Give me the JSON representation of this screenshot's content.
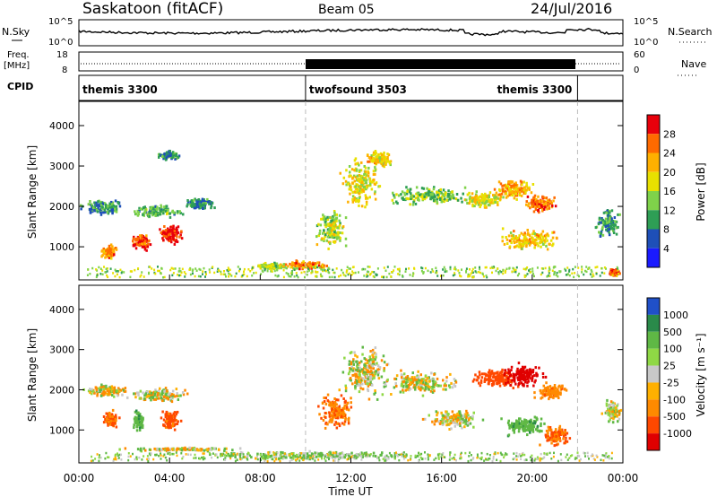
{
  "header": {
    "site": "Saskatoon (fitACF)",
    "beam": "Beam 05",
    "date": "24/Jul/2016"
  },
  "noise_panel": {
    "left_label": "N.Sky",
    "left_ticks": [
      "10^5",
      "10^0"
    ],
    "right_ticks": [
      "10^5",
      "10^0"
    ],
    "right_label": "N.Search"
  },
  "freq_panel": {
    "left_label_1": "Freq.",
    "left_label_2": "[MHz]",
    "left_ticks": [
      "18",
      "8"
    ],
    "right_ticks": [
      "60",
      "0"
    ],
    "right_label": "Nave"
  },
  "cpid_panel": {
    "label": "CPID",
    "segments": [
      {
        "name": "themis 3300",
        "start_h": 0,
        "end_h": 10
      },
      {
        "name": "twofsound 3503",
        "start_h": 10,
        "end_h": 22
      },
      {
        "name": "themis 3300",
        "start_h": 22,
        "end_h": 24
      }
    ]
  },
  "power_panel": {
    "ylabel": "Slant Range [km]",
    "colorbar_label": "Power [dB]",
    "colorbar_ticks": [
      "28",
      "24",
      "20",
      "16",
      "12",
      "8",
      "4"
    ],
    "colorbar_colors": [
      "#e8000b",
      "#ff6a00",
      "#ffb000",
      "#e8e000",
      "#7fd24a",
      "#2e9e55",
      "#1e4fb8",
      "#1a1aff"
    ]
  },
  "velocity_panel": {
    "ylabel": "Slant Range [km]",
    "colorbar_label": "Velocity [m s⁻¹]",
    "colorbar_ticks": [
      "1000",
      "500",
      "100",
      "25",
      "-25",
      "-100",
      "-500",
      "-1000"
    ],
    "colorbar_colors": [
      "#2050c8",
      "#2a8a4a",
      "#5fb845",
      "#8fd845",
      "#c8c8c8",
      "#ffb000",
      "#ff8a00",
      "#ff4800",
      "#e00000"
    ]
  },
  "chart_data": {
    "type": "heatmap",
    "xlabel": "Time UT",
    "x_ticks": [
      "00:00",
      "04:00",
      "08:00",
      "12:00",
      "16:00",
      "20:00",
      "00:00"
    ],
    "xlim_hours": [
      0,
      24
    ],
    "y_ticks": [
      "4000",
      "3000",
      "2000",
      "1000"
    ],
    "ylim_km": [
      180,
      4600
    ],
    "mode_change_hours": [
      10,
      22
    ],
    "power_blobs": [
      {
        "t": 1.0,
        "r": 2000,
        "dt": 1.1,
        "dr": 200,
        "v": 8
      },
      {
        "t": 3.3,
        "r": 1900,
        "dt": 1.4,
        "dr": 180,
        "v": 10
      },
      {
        "t": 5.3,
        "r": 2100,
        "dt": 0.8,
        "dr": 160,
        "v": 6
      },
      {
        "t": 1.3,
        "r": 900,
        "dt": 0.4,
        "dr": 200,
        "v": 22
      },
      {
        "t": 2.7,
        "r": 1150,
        "dt": 0.5,
        "dr": 250,
        "v": 26
      },
      {
        "t": 4.0,
        "r": 1350,
        "dt": 0.6,
        "dr": 300,
        "v": 28
      },
      {
        "t": 3.9,
        "r": 3300,
        "dt": 0.6,
        "dr": 130,
        "v": 6
      },
      {
        "t": 8.5,
        "r": 550,
        "dt": 1.0,
        "dr": 100,
        "v": 14
      },
      {
        "t": 10.0,
        "r": 580,
        "dt": 1.2,
        "dr": 120,
        "v": 22
      },
      {
        "t": 11.1,
        "r": 1450,
        "dt": 0.8,
        "dr": 600,
        "v": 14
      },
      {
        "t": 12.4,
        "r": 2600,
        "dt": 1.0,
        "dr": 700,
        "v": 16
      },
      {
        "t": 13.2,
        "r": 3200,
        "dt": 0.7,
        "dr": 250,
        "v": 18
      },
      {
        "t": 15.5,
        "r": 2300,
        "dt": 2.2,
        "dr": 300,
        "v": 12
      },
      {
        "t": 17.8,
        "r": 2200,
        "dt": 1.2,
        "dr": 250,
        "v": 16
      },
      {
        "t": 19.2,
        "r": 2450,
        "dt": 1.0,
        "dr": 300,
        "v": 20
      },
      {
        "t": 20.3,
        "r": 2100,
        "dt": 0.9,
        "dr": 250,
        "v": 24
      },
      {
        "t": 19.8,
        "r": 1200,
        "dt": 1.6,
        "dr": 300,
        "v": 18
      },
      {
        "t": 23.3,
        "r": 1600,
        "dt": 0.6,
        "dr": 400,
        "v": 8
      },
      {
        "t": 23.6,
        "r": 400,
        "dt": 0.3,
        "dr": 100,
        "v": 28
      }
    ],
    "velocity_blobs": [
      {
        "t": 1.2,
        "r": 2000,
        "dt": 1.2,
        "dr": 200,
        "v": 0
      },
      {
        "t": 3.5,
        "r": 1900,
        "dt": 1.6,
        "dr": 200,
        "v": 0
      },
      {
        "t": 1.4,
        "r": 1300,
        "dt": 0.4,
        "dr": 250,
        "v": -300
      },
      {
        "t": 2.6,
        "r": 1250,
        "dt": 0.3,
        "dr": 300,
        "v": 200
      },
      {
        "t": 4.0,
        "r": 1300,
        "dt": 0.5,
        "dr": 300,
        "v": -400
      },
      {
        "t": 4.5,
        "r": 550,
        "dt": 3.0,
        "dr": 60,
        "v": 0
      },
      {
        "t": 10.5,
        "r": 400,
        "dt": 6.0,
        "dr": 120,
        "v": 80
      },
      {
        "t": 11.3,
        "r": 1500,
        "dt": 0.9,
        "dr": 550,
        "v": -300
      },
      {
        "t": 12.6,
        "r": 2500,
        "dt": 1.3,
        "dr": 750,
        "v": 0
      },
      {
        "t": 15.0,
        "r": 2200,
        "dt": 2.0,
        "dr": 350,
        "v": 0
      },
      {
        "t": 16.5,
        "r": 1300,
        "dt": 1.5,
        "dr": 300,
        "v": 0
      },
      {
        "t": 18.4,
        "r": 2300,
        "dt": 1.4,
        "dr": 300,
        "v": -600
      },
      {
        "t": 19.6,
        "r": 2400,
        "dt": 1.0,
        "dr": 350,
        "v": -900
      },
      {
        "t": 20.8,
        "r": 2000,
        "dt": 0.8,
        "dr": 250,
        "v": -200
      },
      {
        "t": 19.6,
        "r": 1150,
        "dt": 1.2,
        "dr": 300,
        "v": 200
      },
      {
        "t": 21.0,
        "r": 900,
        "dt": 0.8,
        "dr": 300,
        "v": -300
      },
      {
        "t": 23.5,
        "r": 1500,
        "dt": 0.5,
        "dr": 350,
        "v": 0
      }
    ]
  }
}
